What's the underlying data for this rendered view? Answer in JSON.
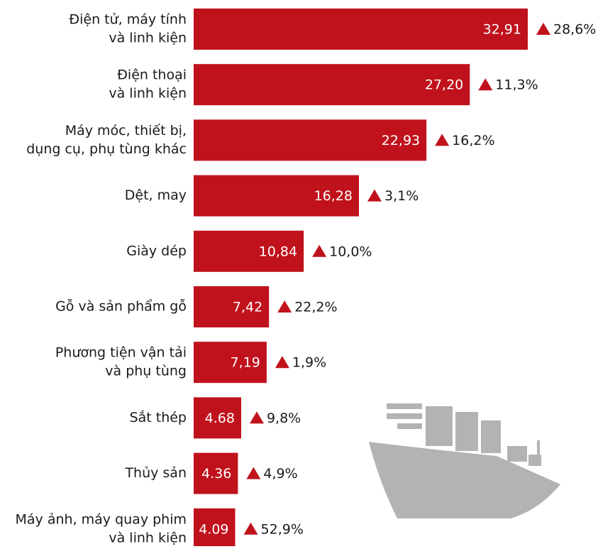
{
  "chart_data": {
    "type": "bar",
    "orientation": "horizontal",
    "color": "#c0121c",
    "categories": [
      [
        "Điện tử, máy tính",
        "và linh kiện"
      ],
      [
        "Điện thoại",
        "và linh kiện"
      ],
      [
        "Máy móc, thiết bị,",
        "dụng cụ, phụ tùng khác"
      ],
      [
        "Dệt, may"
      ],
      [
        "Giày dép"
      ],
      [
        "Gỗ và sản phẩm gỗ"
      ],
      [
        "Phương tiện vận tải",
        "và phụ tùng"
      ],
      [
        "Sắt thép"
      ],
      [
        "Thủy sản"
      ],
      [
        "Máy ảnh, máy quay phim",
        "và linh kiện"
      ]
    ],
    "values": [
      32.91,
      27.2,
      22.93,
      16.28,
      10.84,
      7.42,
      7.19,
      4.68,
      4.36,
      4.09
    ],
    "value_labels": [
      "32,91",
      "27,20",
      "22,93",
      "16,28",
      "10,84",
      "7,42",
      "7,19",
      "4.68",
      "4.36",
      "4.09"
    ],
    "growth": [
      28.6,
      11.3,
      16.2,
      3.1,
      10.0,
      22.2,
      1.9,
      9.8,
      4.9,
      52.9
    ],
    "growth_labels": [
      "28,6%",
      "11,3%",
      "16,2%",
      "3,1%",
      "10,0%",
      "22,2%",
      "1,9%",
      "9,8%",
      "4,9%",
      "52,9%"
    ],
    "growth_color": "#c0121c"
  }
}
